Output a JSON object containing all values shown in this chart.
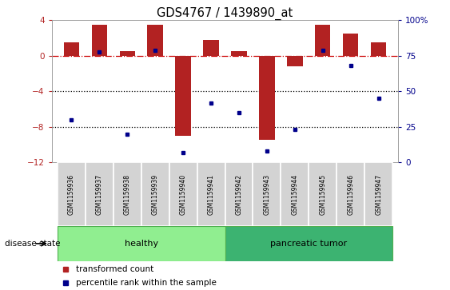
{
  "title": "GDS4767 / 1439890_at",
  "samples": [
    "GSM1159936",
    "GSM1159937",
    "GSM1159938",
    "GSM1159939",
    "GSM1159940",
    "GSM1159941",
    "GSM1159942",
    "GSM1159943",
    "GSM1159944",
    "GSM1159945",
    "GSM1159946",
    "GSM1159947"
  ],
  "transformed_count": [
    1.5,
    3.5,
    0.5,
    3.5,
    -9.0,
    1.8,
    0.5,
    -9.5,
    -1.2,
    3.5,
    2.5,
    1.5
  ],
  "percentile_rank": [
    30,
    78,
    20,
    79,
    7,
    42,
    35,
    8,
    23,
    79,
    68,
    45
  ],
  "bar_color": "#B22222",
  "dot_color": "#00008B",
  "ylim_left": [
    -12,
    4
  ],
  "ylim_right": [
    0,
    100
  ],
  "yticks_left": [
    4,
    0,
    -4,
    -8,
    -12
  ],
  "yticks_right": [
    100,
    75,
    50,
    25,
    0
  ],
  "hline_color": "#CC0000",
  "dotted_lines": [
    -4,
    -8
  ],
  "bar_width": 0.55,
  "disease_state_label": "disease state",
  "group_label_healthy": "healthy",
  "group_label_tumor": "pancreatic tumor",
  "healthy_color": "#90EE90",
  "tumor_color": "#3CB371",
  "legend_label_bar": "transformed count",
  "legend_label_dot": "percentile rank within the sample"
}
